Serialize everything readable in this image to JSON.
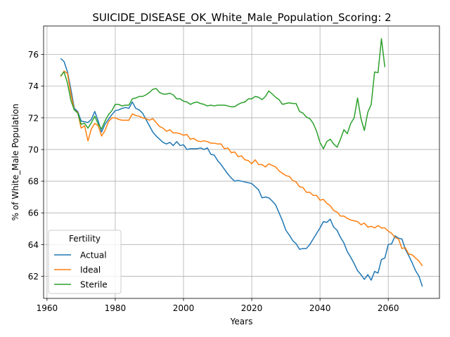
{
  "chart_data": {
    "type": "line",
    "title": "SUICIDE_DISEASE_OK_White_Male_Population_Scoring: 2",
    "xlabel": "Years",
    "ylabel": "% of White_Male Population",
    "xlim": [
      1959,
      2075
    ],
    "ylim": [
      60.6,
      77.8
    ],
    "xticks": [
      1960,
      1980,
      2000,
      2020,
      2040,
      2060
    ],
    "yticks": [
      62,
      64,
      66,
      68,
      70,
      72,
      74,
      76
    ],
    "grid": true,
    "legend": {
      "title": "Fertility",
      "placement": "lower-left"
    },
    "series": [
      {
        "name": "Actual",
        "color": "#1f77b4",
        "points": [
          [
            1964,
            75.75
          ],
          [
            1965,
            75.55
          ],
          [
            1966,
            74.9
          ],
          [
            1967,
            73.8
          ],
          [
            1968,
            72.6
          ],
          [
            1969,
            72.4
          ],
          [
            1970,
            71.8
          ],
          [
            1971,
            71.75
          ],
          [
            1972,
            71.7
          ],
          [
            1973,
            71.9
          ],
          [
            1974,
            72.4
          ],
          [
            1975,
            71.8
          ],
          [
            1976,
            71.1
          ],
          [
            1977,
            71.6
          ],
          [
            1978,
            71.9
          ],
          [
            1979,
            72.2
          ],
          [
            1980,
            72.45
          ],
          [
            1981,
            72.5
          ],
          [
            1982,
            72.6
          ],
          [
            1983,
            72.65
          ],
          [
            1984,
            72.6
          ],
          [
            1985,
            73.0
          ],
          [
            1986,
            72.6
          ],
          [
            1987,
            72.5
          ],
          [
            1988,
            72.3
          ],
          [
            1989,
            71.9
          ],
          [
            1990,
            71.5
          ],
          [
            1991,
            71.1
          ],
          [
            1992,
            70.85
          ],
          [
            1993,
            70.65
          ],
          [
            1994,
            70.45
          ],
          [
            1995,
            70.35
          ],
          [
            1996,
            70.45
          ],
          [
            1997,
            70.25
          ],
          [
            1998,
            70.5
          ],
          [
            1999,
            70.25
          ],
          [
            2000,
            70.3
          ],
          [
            2001,
            70.0
          ],
          [
            2002,
            70.05
          ],
          [
            2003,
            70.05
          ],
          [
            2004,
            70.05
          ],
          [
            2005,
            70.1
          ],
          [
            2006,
            70.0
          ],
          [
            2007,
            70.1
          ],
          [
            2008,
            69.7
          ],
          [
            2009,
            69.65
          ],
          [
            2010,
            69.3
          ],
          [
            2011,
            69.05
          ],
          [
            2012,
            68.75
          ],
          [
            2013,
            68.45
          ],
          [
            2014,
            68.2
          ],
          [
            2015,
            68.0
          ],
          [
            2016,
            68.05
          ],
          [
            2017,
            68.0
          ],
          [
            2018,
            67.95
          ],
          [
            2019,
            67.9
          ],
          [
            2020,
            67.85
          ],
          [
            2021,
            67.65
          ],
          [
            2022,
            67.45
          ],
          [
            2023,
            66.95
          ],
          [
            2024,
            67.0
          ],
          [
            2025,
            66.95
          ],
          [
            2026,
            66.75
          ],
          [
            2027,
            66.5
          ],
          [
            2028,
            66.0
          ],
          [
            2029,
            65.5
          ],
          [
            2030,
            64.9
          ],
          [
            2031,
            64.6
          ],
          [
            2032,
            64.25
          ],
          [
            2033,
            64.05
          ],
          [
            2034,
            63.7
          ],
          [
            2035,
            63.75
          ],
          [
            2036,
            63.75
          ],
          [
            2037,
            64.0
          ],
          [
            2038,
            64.35
          ],
          [
            2039,
            64.7
          ],
          [
            2040,
            65.05
          ],
          [
            2041,
            65.45
          ],
          [
            2042,
            65.4
          ],
          [
            2043,
            65.6
          ],
          [
            2044,
            65.1
          ],
          [
            2045,
            64.9
          ],
          [
            2046,
            64.45
          ],
          [
            2047,
            64.1
          ],
          [
            2048,
            63.55
          ],
          [
            2049,
            63.2
          ],
          [
            2050,
            62.8
          ],
          [
            2051,
            62.35
          ],
          [
            2052,
            62.1
          ],
          [
            2053,
            61.8
          ],
          [
            2054,
            62.1
          ],
          [
            2055,
            61.75
          ],
          [
            2056,
            62.3
          ],
          [
            2057,
            62.2
          ],
          [
            2058,
            63.05
          ],
          [
            2059,
            63.15
          ],
          [
            2060,
            64.0
          ],
          [
            2061,
            64.05
          ],
          [
            2062,
            64.55
          ],
          [
            2063,
            64.4
          ],
          [
            2064,
            64.35
          ],
          [
            2065,
            63.7
          ],
          [
            2066,
            63.3
          ],
          [
            2067,
            62.85
          ],
          [
            2068,
            62.35
          ],
          [
            2069,
            62.0
          ],
          [
            2070,
            61.35
          ]
        ]
      },
      {
        "name": "Ideal",
        "color": "#ff7f0e",
        "points": [
          [
            1964,
            74.6
          ],
          [
            1965,
            74.95
          ],
          [
            1966,
            74.8
          ],
          [
            1967,
            73.5
          ],
          [
            1968,
            72.5
          ],
          [
            1969,
            72.35
          ],
          [
            1970,
            71.35
          ],
          [
            1971,
            71.5
          ],
          [
            1972,
            70.55
          ],
          [
            1973,
            71.3
          ],
          [
            1974,
            71.65
          ],
          [
            1975,
            71.5
          ],
          [
            1976,
            70.85
          ],
          [
            1977,
            71.2
          ],
          [
            1978,
            71.75
          ],
          [
            1979,
            72.0
          ],
          [
            1980,
            72.0
          ],
          [
            1981,
            71.9
          ],
          [
            1982,
            71.85
          ],
          [
            1983,
            71.85
          ],
          [
            1984,
            71.85
          ],
          [
            1985,
            72.25
          ],
          [
            1986,
            72.15
          ],
          [
            1987,
            72.1
          ],
          [
            1988,
            72.0
          ],
          [
            1989,
            71.95
          ],
          [
            1990,
            71.85
          ],
          [
            1991,
            71.95
          ],
          [
            1992,
            71.7
          ],
          [
            1993,
            71.45
          ],
          [
            1994,
            71.35
          ],
          [
            1995,
            71.15
          ],
          [
            1996,
            71.25
          ],
          [
            1997,
            71.05
          ],
          [
            1998,
            71.05
          ],
          [
            1999,
            71.0
          ],
          [
            2000,
            70.9
          ],
          [
            2001,
            70.95
          ],
          [
            2002,
            70.65
          ],
          [
            2003,
            70.7
          ],
          [
            2004,
            70.55
          ],
          [
            2005,
            70.5
          ],
          [
            2006,
            70.55
          ],
          [
            2007,
            70.5
          ],
          [
            2008,
            70.4
          ],
          [
            2009,
            70.4
          ],
          [
            2010,
            70.35
          ],
          [
            2011,
            70.35
          ],
          [
            2012,
            70.05
          ],
          [
            2013,
            70.1
          ],
          [
            2014,
            69.8
          ],
          [
            2015,
            69.85
          ],
          [
            2016,
            69.55
          ],
          [
            2017,
            69.6
          ],
          [
            2018,
            69.35
          ],
          [
            2019,
            69.3
          ],
          [
            2020,
            69.1
          ],
          [
            2021,
            69.35
          ],
          [
            2022,
            69.05
          ],
          [
            2023,
            69.05
          ],
          [
            2024,
            68.9
          ],
          [
            2025,
            69.1
          ],
          [
            2026,
            69.0
          ],
          [
            2027,
            68.9
          ],
          [
            2028,
            68.65
          ],
          [
            2029,
            68.5
          ],
          [
            2030,
            68.35
          ],
          [
            2031,
            68.3
          ],
          [
            2032,
            68.05
          ],
          [
            2033,
            67.95
          ],
          [
            2034,
            67.65
          ],
          [
            2035,
            67.6
          ],
          [
            2036,
            67.3
          ],
          [
            2037,
            67.3
          ],
          [
            2038,
            67.1
          ],
          [
            2039,
            67.1
          ],
          [
            2040,
            66.8
          ],
          [
            2041,
            66.85
          ],
          [
            2042,
            66.6
          ],
          [
            2043,
            66.45
          ],
          [
            2044,
            66.15
          ],
          [
            2045,
            66.05
          ],
          [
            2046,
            65.8
          ],
          [
            2047,
            65.8
          ],
          [
            2048,
            65.65
          ],
          [
            2049,
            65.55
          ],
          [
            2050,
            65.5
          ],
          [
            2051,
            65.45
          ],
          [
            2052,
            65.25
          ],
          [
            2053,
            65.35
          ],
          [
            2054,
            65.1
          ],
          [
            2055,
            65.15
          ],
          [
            2056,
            65.05
          ],
          [
            2057,
            65.2
          ],
          [
            2058,
            65.05
          ],
          [
            2059,
            65.05
          ],
          [
            2060,
            64.85
          ],
          [
            2061,
            64.7
          ],
          [
            2062,
            64.45
          ],
          [
            2063,
            64.35
          ],
          [
            2064,
            63.75
          ],
          [
            2065,
            63.8
          ],
          [
            2066,
            63.4
          ],
          [
            2067,
            63.35
          ],
          [
            2068,
            63.15
          ],
          [
            2069,
            62.95
          ],
          [
            2070,
            62.65
          ]
        ]
      },
      {
        "name": "Sterile",
        "color": "#2ca02c",
        "points": [
          [
            1964,
            74.65
          ],
          [
            1965,
            74.9
          ],
          [
            1966,
            74.2
          ],
          [
            1967,
            73.1
          ],
          [
            1968,
            72.5
          ],
          [
            1969,
            72.3
          ],
          [
            1970,
            71.6
          ],
          [
            1971,
            71.65
          ],
          [
            1972,
            71.35
          ],
          [
            1973,
            71.7
          ],
          [
            1974,
            72.1
          ],
          [
            1975,
            71.6
          ],
          [
            1976,
            71.3
          ],
          [
            1977,
            71.8
          ],
          [
            1978,
            72.2
          ],
          [
            1979,
            72.45
          ],
          [
            1980,
            72.85
          ],
          [
            1981,
            72.85
          ],
          [
            1982,
            72.75
          ],
          [
            1983,
            72.8
          ],
          [
            1984,
            72.8
          ],
          [
            1985,
            73.2
          ],
          [
            1986,
            73.25
          ],
          [
            1987,
            73.35
          ],
          [
            1988,
            73.35
          ],
          [
            1989,
            73.45
          ],
          [
            1990,
            73.6
          ],
          [
            1991,
            73.8
          ],
          [
            1992,
            73.85
          ],
          [
            1993,
            73.6
          ],
          [
            1994,
            73.5
          ],
          [
            1995,
            73.5
          ],
          [
            1996,
            73.55
          ],
          [
            1997,
            73.45
          ],
          [
            1998,
            73.2
          ],
          [
            1999,
            73.2
          ],
          [
            2000,
            73.05
          ],
          [
            2001,
            73.0
          ],
          [
            2002,
            72.85
          ],
          [
            2003,
            72.95
          ],
          [
            2004,
            73.0
          ],
          [
            2005,
            72.9
          ],
          [
            2006,
            72.85
          ],
          [
            2007,
            72.75
          ],
          [
            2008,
            72.8
          ],
          [
            2009,
            72.75
          ],
          [
            2010,
            72.8
          ],
          [
            2011,
            72.8
          ],
          [
            2012,
            72.8
          ],
          [
            2013,
            72.75
          ],
          [
            2014,
            72.7
          ],
          [
            2015,
            72.7
          ],
          [
            2016,
            72.85
          ],
          [
            2017,
            72.95
          ],
          [
            2018,
            73.0
          ],
          [
            2019,
            73.2
          ],
          [
            2020,
            73.2
          ],
          [
            2021,
            73.35
          ],
          [
            2022,
            73.3
          ],
          [
            2023,
            73.15
          ],
          [
            2024,
            73.35
          ],
          [
            2025,
            73.7
          ],
          [
            2026,
            73.5
          ],
          [
            2027,
            73.3
          ],
          [
            2028,
            73.15
          ],
          [
            2029,
            72.85
          ],
          [
            2030,
            72.9
          ],
          [
            2031,
            72.95
          ],
          [
            2032,
            72.9
          ],
          [
            2033,
            72.9
          ],
          [
            2034,
            72.4
          ],
          [
            2035,
            72.3
          ],
          [
            2036,
            72.05
          ],
          [
            2037,
            71.95
          ],
          [
            2038,
            71.65
          ],
          [
            2039,
            71.15
          ],
          [
            2040,
            70.45
          ],
          [
            2041,
            70.05
          ],
          [
            2042,
            70.5
          ],
          [
            2043,
            70.65
          ],
          [
            2044,
            70.35
          ],
          [
            2045,
            70.15
          ],
          [
            2046,
            70.65
          ],
          [
            2047,
            71.25
          ],
          [
            2048,
            71.0
          ],
          [
            2049,
            71.65
          ],
          [
            2050,
            72.0
          ],
          [
            2051,
            73.25
          ],
          [
            2052,
            71.95
          ],
          [
            2053,
            71.2
          ],
          [
            2054,
            72.35
          ],
          [
            2055,
            72.85
          ],
          [
            2056,
            74.9
          ],
          [
            2057,
            74.85
          ],
          [
            2058,
            77.0
          ],
          [
            2059,
            75.2
          ]
        ]
      }
    ]
  }
}
